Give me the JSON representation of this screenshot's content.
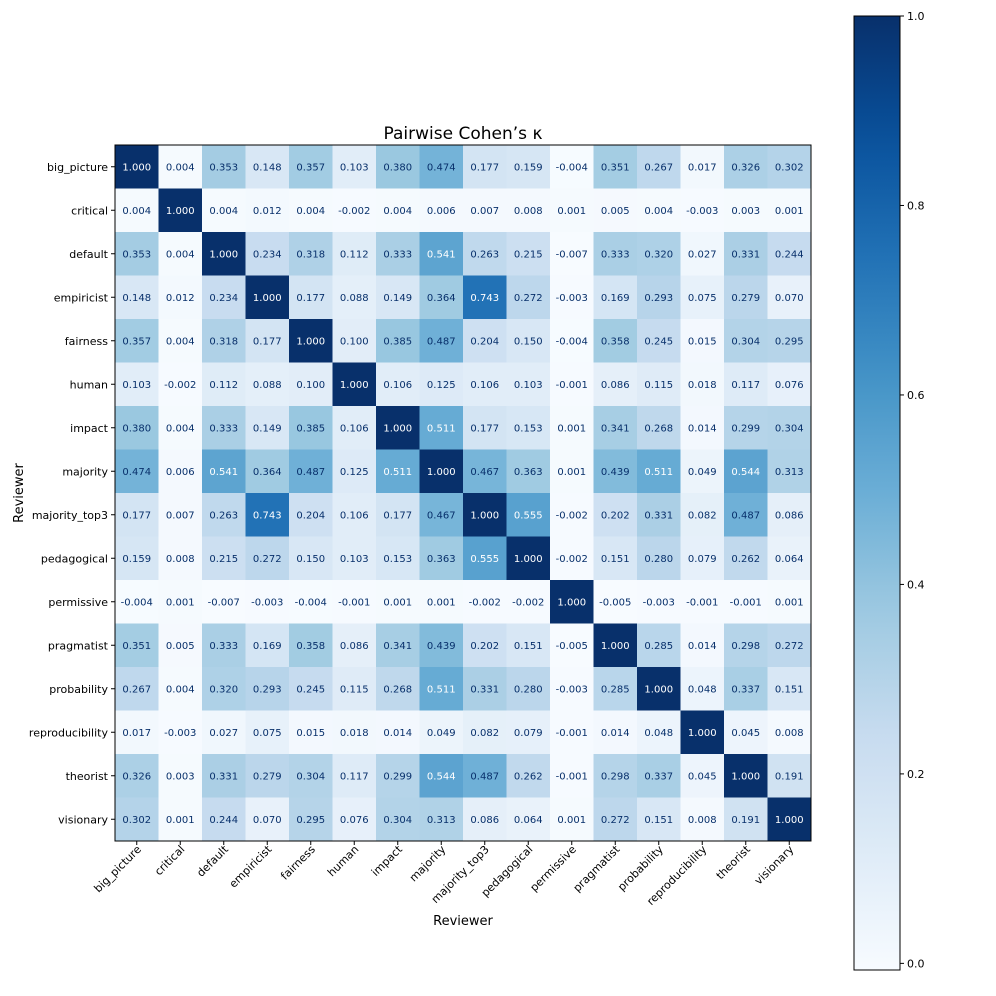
{
  "chart_data": {
    "type": "heatmap",
    "title": "Pairwise Cohen’s κ",
    "xlabel": "Reviewer",
    "ylabel": "Reviewer",
    "labels": [
      "big_picture",
      "critical",
      "default",
      "empiricist",
      "fairness",
      "human",
      "impact",
      "majority",
      "majority_top3",
      "pedagogical",
      "permissive",
      "pragmatist",
      "probability",
      "reproducibility",
      "theorist",
      "visionary"
    ],
    "matrix": [
      [
        1.0,
        0.004,
        0.353,
        0.148,
        0.357,
        0.103,
        0.38,
        0.474,
        0.177,
        0.159,
        -0.004,
        0.351,
        0.267,
        0.017,
        0.326,
        0.302
      ],
      [
        0.004,
        1.0,
        0.004,
        0.012,
        0.004,
        -0.002,
        0.004,
        0.006,
        0.007,
        0.008,
        0.001,
        0.005,
        0.004,
        -0.003,
        0.003,
        0.001
      ],
      [
        0.353,
        0.004,
        1.0,
        0.234,
        0.318,
        0.112,
        0.333,
        0.541,
        0.263,
        0.215,
        -0.007,
        0.333,
        0.32,
        0.027,
        0.331,
        0.244
      ],
      [
        0.148,
        0.012,
        0.234,
        1.0,
        0.177,
        0.088,
        0.149,
        0.364,
        0.743,
        0.272,
        -0.003,
        0.169,
        0.293,
        0.075,
        0.279,
        0.07
      ],
      [
        0.357,
        0.004,
        0.318,
        0.177,
        1.0,
        0.1,
        0.385,
        0.487,
        0.204,
        0.15,
        -0.004,
        0.358,
        0.245,
        0.015,
        0.304,
        0.295
      ],
      [
        0.103,
        -0.002,
        0.112,
        0.088,
        0.1,
        1.0,
        0.106,
        0.125,
        0.106,
        0.103,
        -0.001,
        0.086,
        0.115,
        0.018,
        0.117,
        0.076
      ],
      [
        0.38,
        0.004,
        0.333,
        0.149,
        0.385,
        0.106,
        1.0,
        0.511,
        0.177,
        0.153,
        0.001,
        0.341,
        0.268,
        0.014,
        0.299,
        0.304
      ],
      [
        0.474,
        0.006,
        0.541,
        0.364,
        0.487,
        0.125,
        0.511,
        1.0,
        0.467,
        0.363,
        0.001,
        0.439,
        0.511,
        0.049,
        0.544,
        0.313
      ],
      [
        0.177,
        0.007,
        0.263,
        0.743,
        0.204,
        0.106,
        0.177,
        0.467,
        1.0,
        0.555,
        -0.002,
        0.202,
        0.331,
        0.082,
        0.487,
        0.086
      ],
      [
        0.159,
        0.008,
        0.215,
        0.272,
        0.15,
        0.103,
        0.153,
        0.363,
        0.555,
        1.0,
        -0.002,
        0.151,
        0.28,
        0.079,
        0.262,
        0.064
      ],
      [
        -0.004,
        0.001,
        -0.007,
        -0.003,
        -0.004,
        -0.001,
        0.001,
        0.001,
        -0.002,
        -0.002,
        1.0,
        -0.005,
        -0.003,
        -0.001,
        -0.001,
        0.001
      ],
      [
        0.351,
        0.005,
        0.333,
        0.169,
        0.358,
        0.086,
        0.341,
        0.439,
        0.202,
        0.151,
        -0.005,
        1.0,
        0.285,
        0.014,
        0.298,
        0.272
      ],
      [
        0.267,
        0.004,
        0.32,
        0.293,
        0.245,
        0.115,
        0.268,
        0.511,
        0.331,
        0.28,
        -0.003,
        0.285,
        1.0,
        0.048,
        0.337,
        0.151
      ],
      [
        0.017,
        -0.003,
        0.027,
        0.075,
        0.015,
        0.018,
        0.014,
        0.049,
        0.082,
        0.079,
        -0.001,
        0.014,
        0.048,
        1.0,
        0.045,
        0.008
      ],
      [
        0.326,
        0.003,
        0.331,
        0.279,
        0.304,
        0.117,
        0.299,
        0.544,
        0.487,
        0.262,
        -0.001,
        0.298,
        0.337,
        0.045,
        1.0,
        0.191
      ],
      [
        0.302,
        0.001,
        0.244,
        0.07,
        0.295,
        0.076,
        0.304,
        0.313,
        0.086,
        0.064,
        0.001,
        0.272,
        0.151,
        0.008,
        0.191,
        1.0
      ]
    ],
    "value_format": "3 decimals",
    "colormap": "Blues",
    "colorbar": {
      "range": [
        -0.007,
        1.0
      ],
      "ticks": [
        0.0,
        0.2,
        0.4,
        0.6,
        0.8,
        1.0
      ],
      "tick_labels": [
        "0.0",
        "0.2",
        "0.4",
        "0.6",
        "0.8",
        "1.0"
      ]
    }
  }
}
